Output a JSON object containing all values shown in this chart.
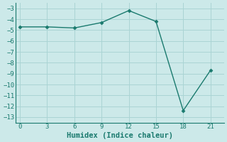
{
  "x": [
    0,
    3,
    6,
    9,
    12,
    15,
    18,
    21
  ],
  "y": [
    -4.7,
    -4.7,
    -4.8,
    -4.3,
    -3.2,
    -4.2,
    -12.4,
    -8.7
  ],
  "line_color": "#1a7a6e",
  "marker": "D",
  "marker_size": 2.5,
  "bg_color": "#cce9e9",
  "grid_color": "#aad4d4",
  "xlabel": "Humidex (Indice chaleur)",
  "ylim": [
    -13.5,
    -2.5
  ],
  "xlim": [
    -0.5,
    22.5
  ],
  "xticks": [
    0,
    3,
    6,
    9,
    12,
    15,
    18,
    21
  ],
  "yticks": [
    -3,
    -4,
    -5,
    -6,
    -7,
    -8,
    -9,
    -10,
    -11,
    -12,
    -13
  ],
  "tick_fontsize": 6.5,
  "label_fontsize": 7.5,
  "line_width": 1.0
}
